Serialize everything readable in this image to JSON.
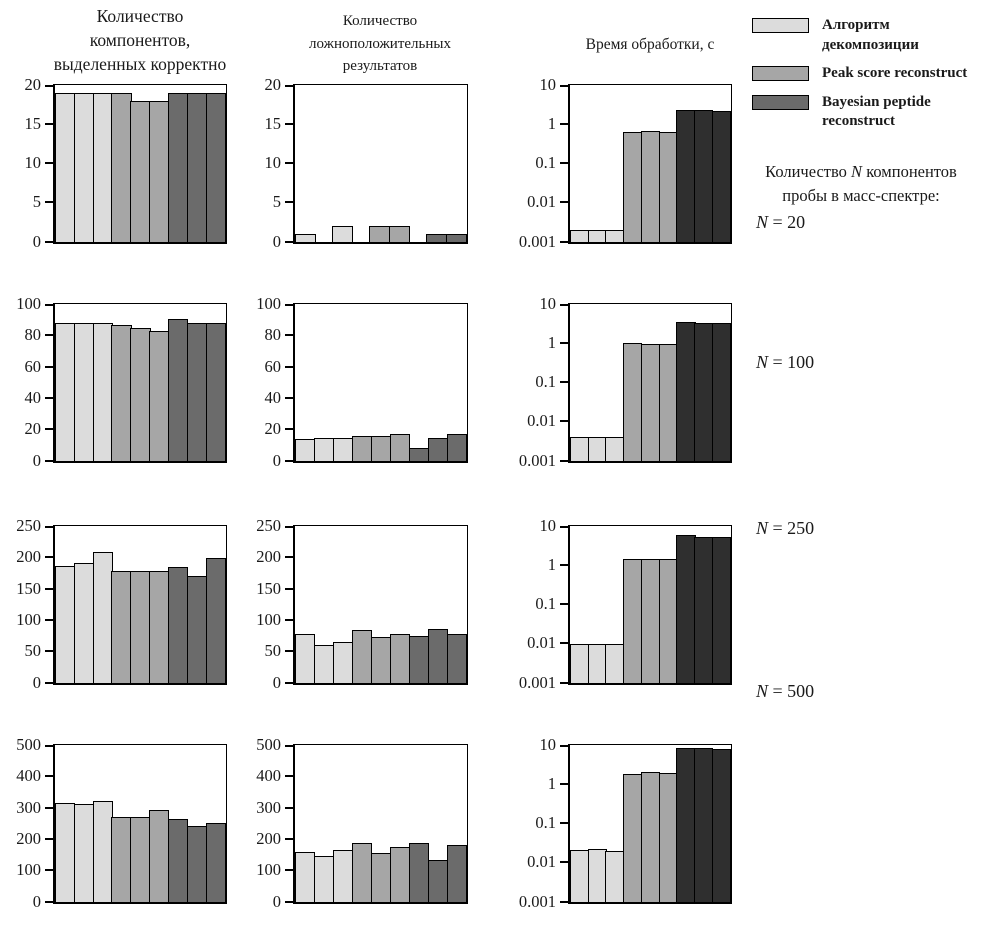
{
  "colors": {
    "light": "#dcdcdc",
    "medium": "#a6a6a6",
    "dark": "#6b6b6b",
    "dark_time": "#2f2f2f",
    "border": "#000000"
  },
  "columns": [
    {
      "title_lines": [
        "Количество",
        "компонентов,",
        "выделенных корректно"
      ]
    },
    {
      "title_lines": [
        "Количество",
        "ложноположительных",
        "результатов"
      ]
    },
    {
      "title_lines": [
        "Время обработки, с"
      ]
    }
  ],
  "legend": {
    "items": [
      {
        "label": "Алгоритм декомпозиции",
        "color_key": "light"
      },
      {
        "label": "Peak score reconstruct",
        "color_key": "medium"
      },
      {
        "label": "Bayesian peptide reconstruct",
        "color_key": "dark"
      }
    ]
  },
  "annotations": {
    "caption": {
      "pre": "Количество ",
      "var": "N",
      "post": " компонентов",
      "line2": "пробы в масс-спектре:"
    },
    "row_labels": [
      {
        "var": "N",
        "rest": " = 20"
      },
      {
        "var": "N",
        "rest": " = 100"
      },
      {
        "var": "N",
        "rest": " = 250"
      },
      {
        "var": "N",
        "rest": " = 500"
      }
    ]
  },
  "chart_data": [
    {
      "id": "correct-n20",
      "row": 0,
      "col": 0,
      "type": "bar",
      "scale": "linear",
      "ylim": [
        0,
        20
      ],
      "yticks": [
        0,
        5,
        10,
        15,
        20
      ],
      "series": [
        {
          "name": "Алгоритм декомпозиции",
          "values": [
            19,
            19,
            19
          ]
        },
        {
          "name": "Peak score reconstruct",
          "values": [
            19,
            18,
            18
          ]
        },
        {
          "name": "Bayesian peptide reconstruct",
          "values": [
            19,
            19,
            19
          ]
        }
      ]
    },
    {
      "id": "falsepos-n20",
      "row": 0,
      "col": 1,
      "type": "bar",
      "scale": "linear",
      "ylim": [
        0,
        20
      ],
      "yticks": [
        0,
        5,
        10,
        15,
        20
      ],
      "series": [
        {
          "name": "Алгоритм декомпозиции",
          "values": [
            1,
            0,
            2
          ]
        },
        {
          "name": "Peak score reconstruct",
          "values": [
            0,
            2,
            2
          ]
        },
        {
          "name": "Bayesian peptide reconstruct",
          "values": [
            0,
            1,
            1
          ]
        }
      ]
    },
    {
      "id": "time-n20",
      "row": 0,
      "col": 2,
      "type": "bar",
      "scale": "log",
      "ylim": [
        0.001,
        10
      ],
      "yticks": [
        10,
        1,
        0.1,
        0.01,
        0.001
      ],
      "series": [
        {
          "name": "Алгоритм декомпозиции",
          "values": [
            0.002,
            0.002,
            0.002
          ]
        },
        {
          "name": "Peak score reconstruct",
          "values": [
            0.65,
            0.7,
            0.65
          ]
        },
        {
          "name": "Bayesian peptide reconstruct",
          "values": [
            2.3,
            2.3,
            2.2
          ]
        }
      ]
    },
    {
      "id": "correct-n100",
      "row": 1,
      "col": 0,
      "type": "bar",
      "scale": "linear",
      "ylim": [
        0,
        100
      ],
      "yticks": [
        0,
        20,
        40,
        60,
        80,
        100
      ],
      "series": [
        {
          "name": "Алгоритм декомпозиции",
          "values": [
            88,
            88,
            88
          ]
        },
        {
          "name": "Peak score reconstruct",
          "values": [
            87,
            85,
            83
          ]
        },
        {
          "name": "Bayesian peptide reconstruct",
          "values": [
            91,
            88,
            88
          ]
        }
      ]
    },
    {
      "id": "falsepos-n100",
      "row": 1,
      "col": 1,
      "type": "bar",
      "scale": "linear",
      "ylim": [
        0,
        100
      ],
      "yticks": [
        0,
        20,
        40,
        60,
        80,
        100
      ],
      "series": [
        {
          "name": "Алгоритм декомпозиции",
          "values": [
            14,
            15,
            15
          ]
        },
        {
          "name": "Peak score reconstruct",
          "values": [
            16,
            16,
            17
          ]
        },
        {
          "name": "Bayesian peptide reconstruct",
          "values": [
            8,
            15,
            17
          ]
        }
      ]
    },
    {
      "id": "time-n100",
      "row": 1,
      "col": 2,
      "type": "bar",
      "scale": "log",
      "ylim": [
        0.001,
        10
      ],
      "yticks": [
        10,
        1,
        0.1,
        0.01,
        0.001
      ],
      "series": [
        {
          "name": "Алгоритм декомпозиции",
          "values": [
            0.004,
            0.004,
            0.004
          ]
        },
        {
          "name": "Peak score reconstruct",
          "values": [
            1.05,
            1.0,
            1.0
          ]
        },
        {
          "name": "Bayesian peptide reconstruct",
          "values": [
            3.5,
            3.3,
            3.3
          ]
        }
      ]
    },
    {
      "id": "correct-n250",
      "row": 2,
      "col": 0,
      "type": "bar",
      "scale": "linear",
      "ylim": [
        0,
        250
      ],
      "yticks": [
        0,
        50,
        100,
        150,
        200,
        250
      ],
      "series": [
        {
          "name": "Алгоритм декомпозиции",
          "values": [
            187,
            191,
            210
          ]
        },
        {
          "name": "Peak score reconstruct",
          "values": [
            179,
            179,
            179
          ]
        },
        {
          "name": "Bayesian peptide reconstruct",
          "values": [
            185,
            171,
            200
          ]
        }
      ]
    },
    {
      "id": "falsepos-n250",
      "row": 2,
      "col": 1,
      "type": "bar",
      "scale": "linear",
      "ylim": [
        0,
        250
      ],
      "yticks": [
        0,
        50,
        100,
        150,
        200,
        250
      ],
      "series": [
        {
          "name": "Алгоритм декомпозиции",
          "values": [
            78,
            60,
            66
          ]
        },
        {
          "name": "Peak score reconstruct",
          "values": [
            85,
            73,
            78
          ]
        },
        {
          "name": "Bayesian peptide reconstruct",
          "values": [
            75,
            86,
            78
          ]
        }
      ]
    },
    {
      "id": "time-n250",
      "row": 2,
      "col": 2,
      "type": "bar",
      "scale": "log",
      "ylim": [
        0.001,
        10
      ],
      "yticks": [
        10,
        1,
        0.1,
        0.01,
        0.001
      ],
      "series": [
        {
          "name": "Алгоритм декомпозиции",
          "values": [
            0.01,
            0.01,
            0.01
          ]
        },
        {
          "name": "Peak score reconstruct",
          "values": [
            1.5,
            1.45,
            1.5
          ]
        },
        {
          "name": "Bayesian peptide reconstruct",
          "values": [
            6.0,
            5.5,
            5.5
          ]
        }
      ]
    },
    {
      "id": "correct-n500",
      "row": 3,
      "col": 0,
      "type": "bar",
      "scale": "linear",
      "ylim": [
        0,
        500
      ],
      "yticks": [
        0,
        100,
        200,
        300,
        400,
        500
      ],
      "series": [
        {
          "name": "Алгоритм декомпозиции",
          "values": [
            315,
            312,
            323
          ]
        },
        {
          "name": "Peak score reconstruct",
          "values": [
            273,
            273,
            293
          ]
        },
        {
          "name": "Bayesian peptide reconstruct",
          "values": [
            264,
            242,
            254
          ]
        }
      ]
    },
    {
      "id": "falsepos-n500",
      "row": 3,
      "col": 1,
      "type": "bar",
      "scale": "linear",
      "ylim": [
        0,
        500
      ],
      "yticks": [
        0,
        100,
        200,
        300,
        400,
        500
      ],
      "series": [
        {
          "name": "Алгоритм декомпозиции",
          "values": [
            160,
            147,
            167
          ]
        },
        {
          "name": "Peak score reconstruct",
          "values": [
            188,
            156,
            176
          ]
        },
        {
          "name": "Bayesian peptide reconstruct",
          "values": [
            189,
            133,
            182
          ]
        }
      ]
    },
    {
      "id": "time-n500",
      "row": 3,
      "col": 2,
      "type": "bar",
      "scale": "log",
      "ylim": [
        0.001,
        10
      ],
      "yticks": [
        10,
        1,
        0.1,
        0.01,
        0.001
      ],
      "series": [
        {
          "name": "Алгоритм декомпозиции",
          "values": [
            0.021,
            0.022,
            0.02
          ]
        },
        {
          "name": "Peak score reconstruct",
          "values": [
            1.9,
            2.1,
            2.0
          ]
        },
        {
          "name": "Bayesian peptide reconstruct",
          "values": [
            8.5,
            8.5,
            8.0
          ]
        }
      ]
    }
  ]
}
